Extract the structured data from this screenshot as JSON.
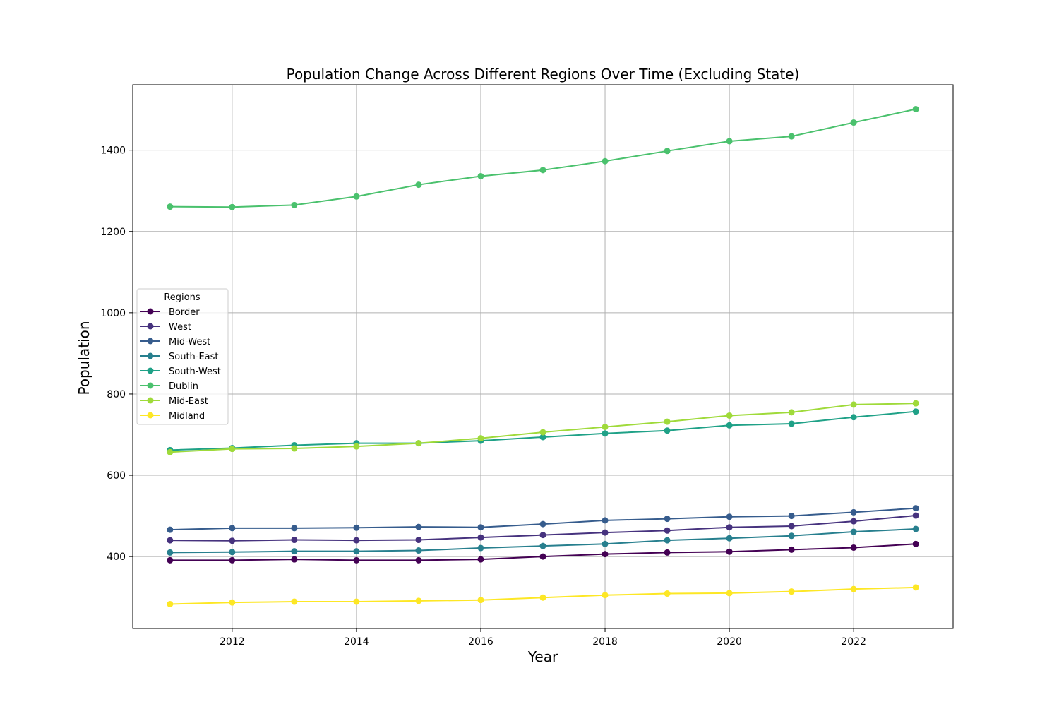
{
  "chart_data": {
    "type": "line",
    "title": "Population Change Across Different Regions Over Time (Excluding State)",
    "xlabel": "Year",
    "ylabel": "Population",
    "xlim": [
      2010.4,
      2023.6
    ],
    "ylim": [
      223,
      1561
    ],
    "xticks": [
      2012,
      2014,
      2016,
      2018,
      2020,
      2022
    ],
    "yticks": [
      400,
      600,
      800,
      1000,
      1200,
      1400
    ],
    "grid": true,
    "legend": {
      "title": "Regions",
      "placement": "center-left"
    },
    "x": [
      2011,
      2012,
      2013,
      2014,
      2015,
      2016,
      2017,
      2018,
      2019,
      2020,
      2021,
      2022,
      2023
    ],
    "series": [
      {
        "name": "Border",
        "color": "#440154",
        "values": [
          391,
          391,
          393,
          391,
          391,
          393,
          400,
          406,
          410,
          412,
          417,
          422,
          431
        ]
      },
      {
        "name": "West",
        "color": "#46327e",
        "values": [
          440,
          439,
          441,
          440,
          441,
          447,
          453,
          459,
          464,
          472,
          475,
          487,
          501
        ]
      },
      {
        "name": "Mid-West",
        "color": "#365c8d",
        "values": [
          466,
          470,
          470,
          471,
          473,
          472,
          480,
          489,
          493,
          498,
          500,
          509,
          519
        ]
      },
      {
        "name": "South-East",
        "color": "#277f8e",
        "values": [
          410,
          411,
          413,
          413,
          415,
          421,
          426,
          431,
          440,
          445,
          451,
          461,
          468
        ]
      },
      {
        "name": "South-West",
        "color": "#1fa187",
        "values": [
          662,
          667,
          674,
          679,
          679,
          685,
          694,
          703,
          710,
          723,
          727,
          743,
          757
        ]
      },
      {
        "name": "Dublin",
        "color": "#4ac16d",
        "values": [
          1261,
          1260,
          1265,
          1286,
          1315,
          1336,
          1351,
          1373,
          1398,
          1422,
          1434,
          1468,
          1501
        ]
      },
      {
        "name": "Mid-East",
        "color": "#9fda3a",
        "values": [
          657,
          665,
          666,
          671,
          679,
          691,
          706,
          719,
          732,
          747,
          755,
          774,
          777
        ]
      },
      {
        "name": "Midland",
        "color": "#fde725",
        "values": [
          283,
          287,
          289,
          289,
          291,
          293,
          299,
          305,
          309,
          310,
          314,
          320,
          324
        ]
      }
    ]
  }
}
